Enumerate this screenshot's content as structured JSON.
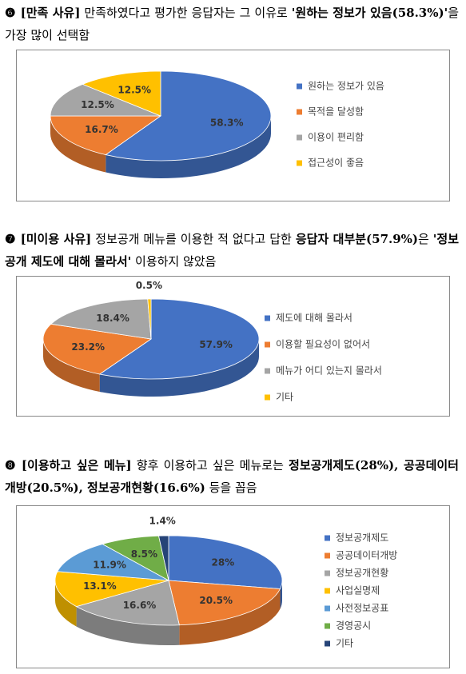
{
  "sections": [
    {
      "marker": "❻",
      "segments": [
        {
          "text": "[만족 사유]",
          "bold": true
        },
        {
          "text": " 만족하였다고 평가한 응답자는 그 이유로 ",
          "bold": false
        },
        {
          "text": "'원하는 정보가 있음(58.3%)'",
          "bold": true
        },
        {
          "text": "을 가장 많이 선택함",
          "bold": false
        }
      ]
    },
    {
      "marker": "❼",
      "segments": [
        {
          "text": "[미이용 사유]",
          "bold": true
        },
        {
          "text": " 정보공개 메뉴를 이용한 적 없다고 답한 ",
          "bold": false
        },
        {
          "text": "응답자 대부분(57.9%)",
          "bold": true
        },
        {
          "text": "은 ",
          "bold": false
        },
        {
          "text": "'정보공개 제도에 대해 몰라서'",
          "bold": true
        },
        {
          "text": " 이용하지 않았음",
          "bold": false
        }
      ]
    },
    {
      "marker": "❽",
      "segments": [
        {
          "text": "[이용하고 싶은 메뉴]",
          "bold": true
        },
        {
          "text": " 향후 이용하고 싶은 메뉴로는 ",
          "bold": false
        },
        {
          "text": "정보공개제도(28%), 공공데이터개방(20.5%), 정보공개현황(16.6%)",
          "bold": true
        },
        {
          "text": " 등을 꼽음",
          "bold": false
        }
      ]
    }
  ],
  "chart_data": [
    {
      "type": "pie",
      "categories": [
        "원하는 정보가 있음",
        "목적을 달성함",
        "이용이 편리함",
        "접근성이 좋음"
      ],
      "values": [
        58.3,
        16.7,
        12.5,
        12.5
      ],
      "value_labels": [
        "58.3%",
        "16.7%",
        "12.5%",
        "12.5%"
      ],
      "colors": [
        "#4472c4",
        "#ed7d31",
        "#a5a5a5",
        "#ffc000"
      ],
      "legend": "right"
    },
    {
      "type": "pie",
      "categories": [
        "제도에 대해 몰라서",
        "이용할 필요성이 없어서",
        "메뉴가 어디 있는지 몰라서",
        "기타"
      ],
      "values": [
        57.9,
        23.2,
        18.4,
        0.5
      ],
      "value_labels": [
        "57.9%",
        "23.2%",
        "18.4%",
        "0.5%"
      ],
      "colors": [
        "#4472c4",
        "#ed7d31",
        "#a5a5a5",
        "#ffc000"
      ],
      "legend": "right"
    },
    {
      "type": "pie",
      "categories": [
        "정보공개제도",
        "공공데이터개방",
        "정보공개현황",
        "사업실명제",
        "사전정보공표",
        "경영공시",
        "기타"
      ],
      "values": [
        28,
        20.5,
        16.6,
        13.1,
        11.9,
        8.5,
        1.4
      ],
      "value_labels": [
        "28%",
        "20.5%",
        "16.6%",
        "13.1%",
        "11.9%",
        "8.5%",
        "1.4%"
      ],
      "colors": [
        "#4472c4",
        "#ed7d31",
        "#a5a5a5",
        "#ffc000",
        "#5b9bd5",
        "#70ad47",
        "#264478"
      ],
      "legend": "right"
    }
  ]
}
